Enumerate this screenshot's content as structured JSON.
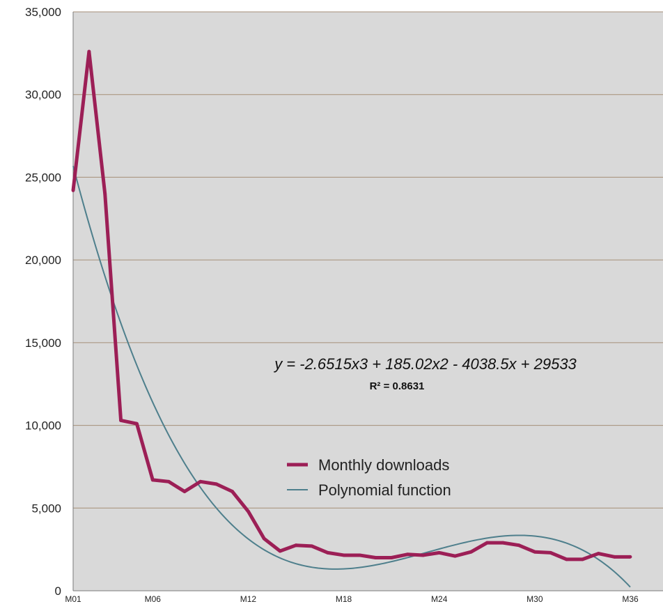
{
  "chart_data": {
    "type": "line",
    "categories": [
      "M01",
      "M02",
      "M03",
      "M04",
      "M05",
      "M06",
      "M07",
      "M08",
      "M09",
      "M10",
      "M11",
      "M12",
      "M13",
      "M14",
      "M15",
      "M16",
      "M17",
      "M18",
      "M19",
      "M20",
      "M21",
      "M22",
      "M23",
      "M24",
      "M25",
      "M26",
      "M27",
      "M28",
      "M29",
      "M30",
      "M31",
      "M32",
      "M33",
      "M34",
      "M35",
      "M36"
    ],
    "x_tick_labels": [
      "M01",
      "M06",
      "M12",
      "M18",
      "M24",
      "M30",
      "M36"
    ],
    "x_tick_categories": [
      "M01",
      "M06",
      "M12",
      "M18",
      "M24",
      "M30",
      "M36"
    ],
    "y_tick_labels": [
      "0",
      "5,000",
      "10,000",
      "15,000",
      "20,000",
      "25,000",
      "30,000",
      "35,000"
    ],
    "y_ticks": [
      0,
      5000,
      10000,
      15000,
      20000,
      25000,
      30000,
      35000
    ],
    "ylim": [
      0,
      35000
    ],
    "grid": "horizontal",
    "legend_position": "center-right",
    "series": [
      {
        "name": "Monthly downloads",
        "color": "#9c1f56",
        "style": "thick-line",
        "values": [
          24200,
          32600,
          24000,
          10300,
          10100,
          6700,
          6600,
          6000,
          6600,
          6450,
          6000,
          4800,
          3150,
          2400,
          2750,
          2700,
          2300,
          2150,
          2150,
          2000,
          2000,
          2200,
          2150,
          2300,
          2100,
          2350,
          2900,
          2900,
          2750,
          2350,
          2300,
          1900,
          1900,
          2250,
          2050,
          2050
        ]
      },
      {
        "name": "Polynomial function",
        "color": "#4e7f8c",
        "style": "thin-line",
        "type": "polynomial-trendline",
        "coefficients": {
          "x3": -2.6515,
          "x2": 185.02,
          "x1": -4038.5,
          "x0": 29533
        }
      }
    ],
    "annotations": {
      "equation": "y = -2.6515x3 + 185.02x2 - 4038.5x + 29533",
      "r_squared": "R² = 0.8631"
    },
    "colors": {
      "plot_background": "#d9d9d9",
      "grid": "#a58f77",
      "axis": "#7a7a7a"
    }
  }
}
